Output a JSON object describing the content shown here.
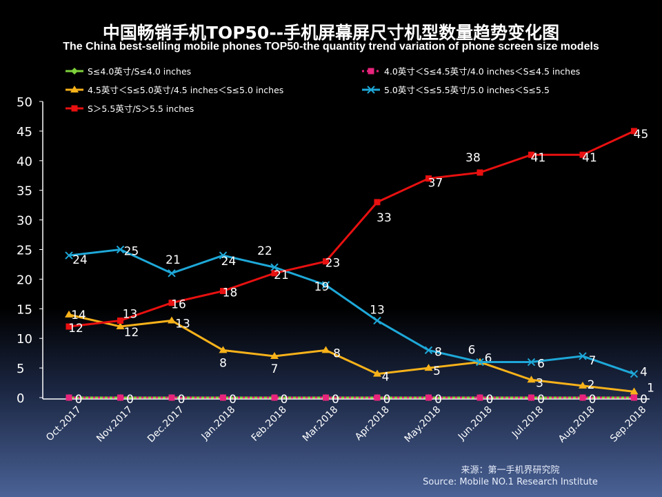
{
  "chart_data": {
    "type": "line",
    "title": "中国畅销手机TOP50--手机屏幕屏尺寸机型数量趋势变化图",
    "subtitle": "The China best-selling mobile phones TOP50-the quantity trend variation of phone screen size models",
    "categories": [
      "Oct.2017",
      "Nov.2017",
      "Dec.2017",
      "Jan.2018",
      "Feb.2018",
      "Mar.2018",
      "Apr.2018",
      "May.2018",
      "Jun.2018",
      "Jul.2018",
      "Aug.2018",
      "Sep.2018"
    ],
    "ylim": [
      0,
      50
    ],
    "yticks": [
      0,
      5,
      10,
      15,
      20,
      25,
      30,
      35,
      40,
      45,
      50
    ],
    "grid": false,
    "legend": "top",
    "series": [
      {
        "name": "S≤4.0英寸/S≤4.0 inches",
        "color": "#7ed13b",
        "marker": "diamond",
        "values": [
          0,
          0,
          0,
          0,
          0,
          0,
          0,
          0,
          0,
          0,
          0,
          0
        ],
        "labels": false
      },
      {
        "name": "4.0英寸＜S≤4.5英寸/4.0 inches＜S≤4.5 inches",
        "color": "#e8247c",
        "marker": "square",
        "dashed": true,
        "values": [
          0,
          0,
          0,
          0,
          0,
          0,
          0,
          0,
          0,
          0,
          0,
          0
        ],
        "labels": true
      },
      {
        "name": "4.5英寸＜S≤5.0英寸/4.5 inches＜S≤5.0 inches",
        "color": "#f7b21a",
        "marker": "triangle",
        "values": [
          14,
          12,
          13,
          8,
          7,
          8,
          4,
          5,
          6,
          3,
          2,
          1
        ],
        "labels": true
      },
      {
        "name": "5.0英寸＜S≤5.5英寸/5.0 inches＜S≤5.5",
        "color": "#1ea8d8",
        "marker": "x",
        "values": [
          24,
          25,
          21,
          24,
          22,
          19,
          13,
          8,
          6,
          6,
          7,
          4
        ],
        "labels": true
      },
      {
        "name": "S＞5.5英寸/S＞5.5 inches",
        "color": "#e81010",
        "marker": "square",
        "values": [
          12,
          13,
          16,
          18,
          21,
          23,
          33,
          37,
          38,
          41,
          41,
          45
        ],
        "labels": true
      }
    ]
  },
  "source": {
    "cn": "来源：第一手机界研究院",
    "en": "Source: Mobile NO.1 Research Institute"
  }
}
